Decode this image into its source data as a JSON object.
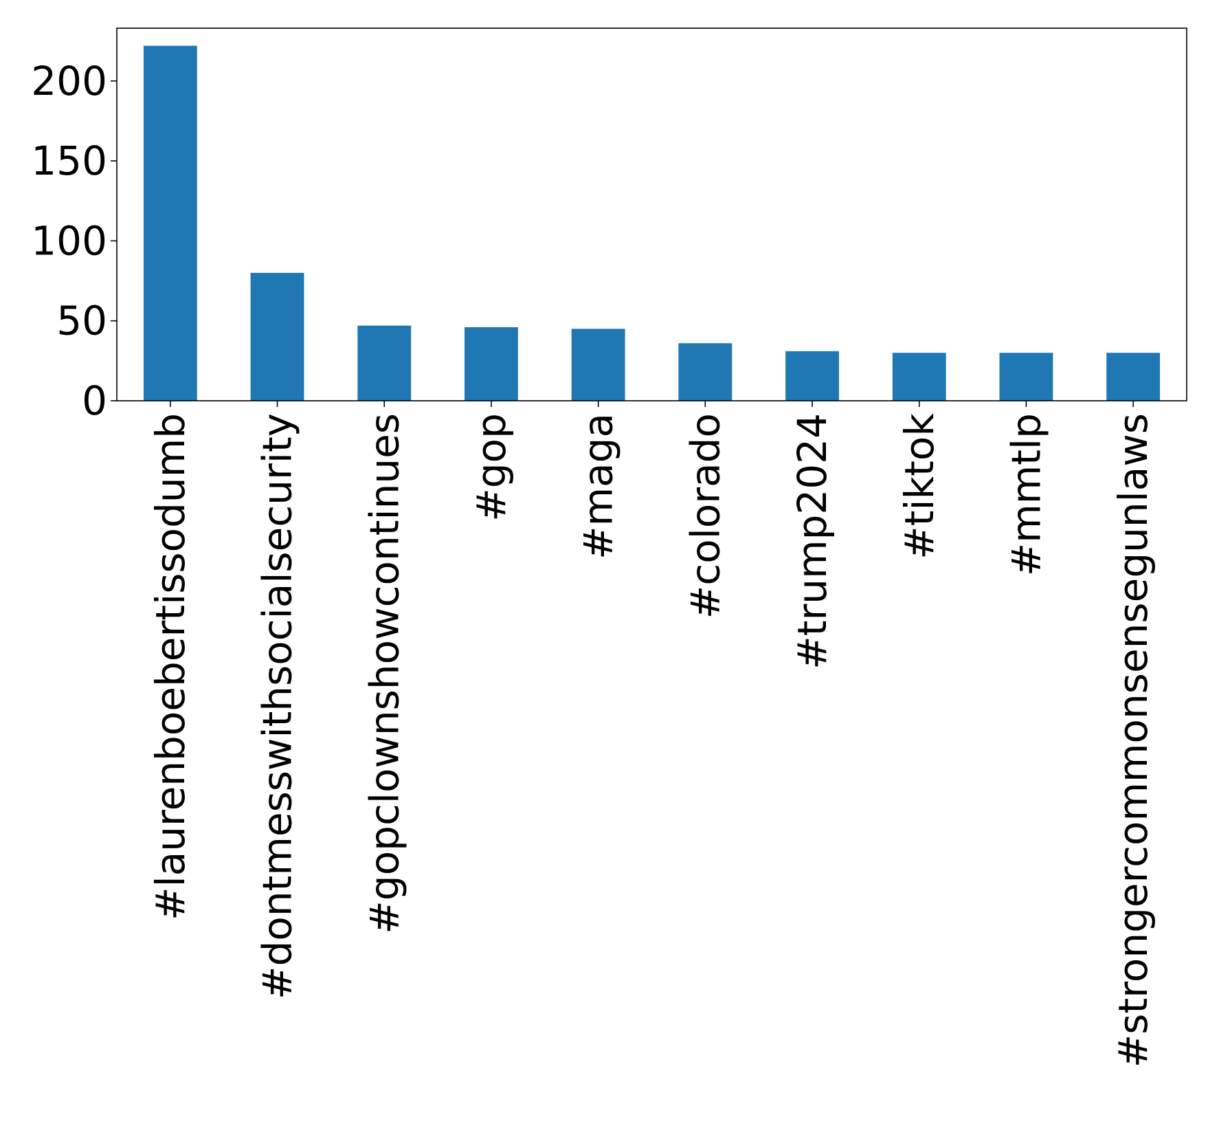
{
  "chart_data": {
    "type": "bar",
    "title": "",
    "xlabel": "",
    "ylabel": "",
    "categories": [
      "#laurenboebertissodumb",
      "#dontmesswithsocialsecurity",
      "#gopclownshowcontinues",
      "#gop",
      "#maga",
      "#colorado",
      "#trump2024",
      "#tiktok",
      "#mmtlp",
      "#strongercommonsensegunlaws"
    ],
    "values": [
      222,
      80,
      47,
      46,
      45,
      36,
      31,
      30,
      30,
      30
    ],
    "ylim": [
      0,
      233
    ],
    "yticks": [
      0,
      50,
      100,
      150,
      200
    ],
    "ytick_labels": [
      "0",
      "50",
      "100",
      "150",
      "200"
    ],
    "bar_color": "#1f77b4",
    "grid": false,
    "legend": "none"
  }
}
